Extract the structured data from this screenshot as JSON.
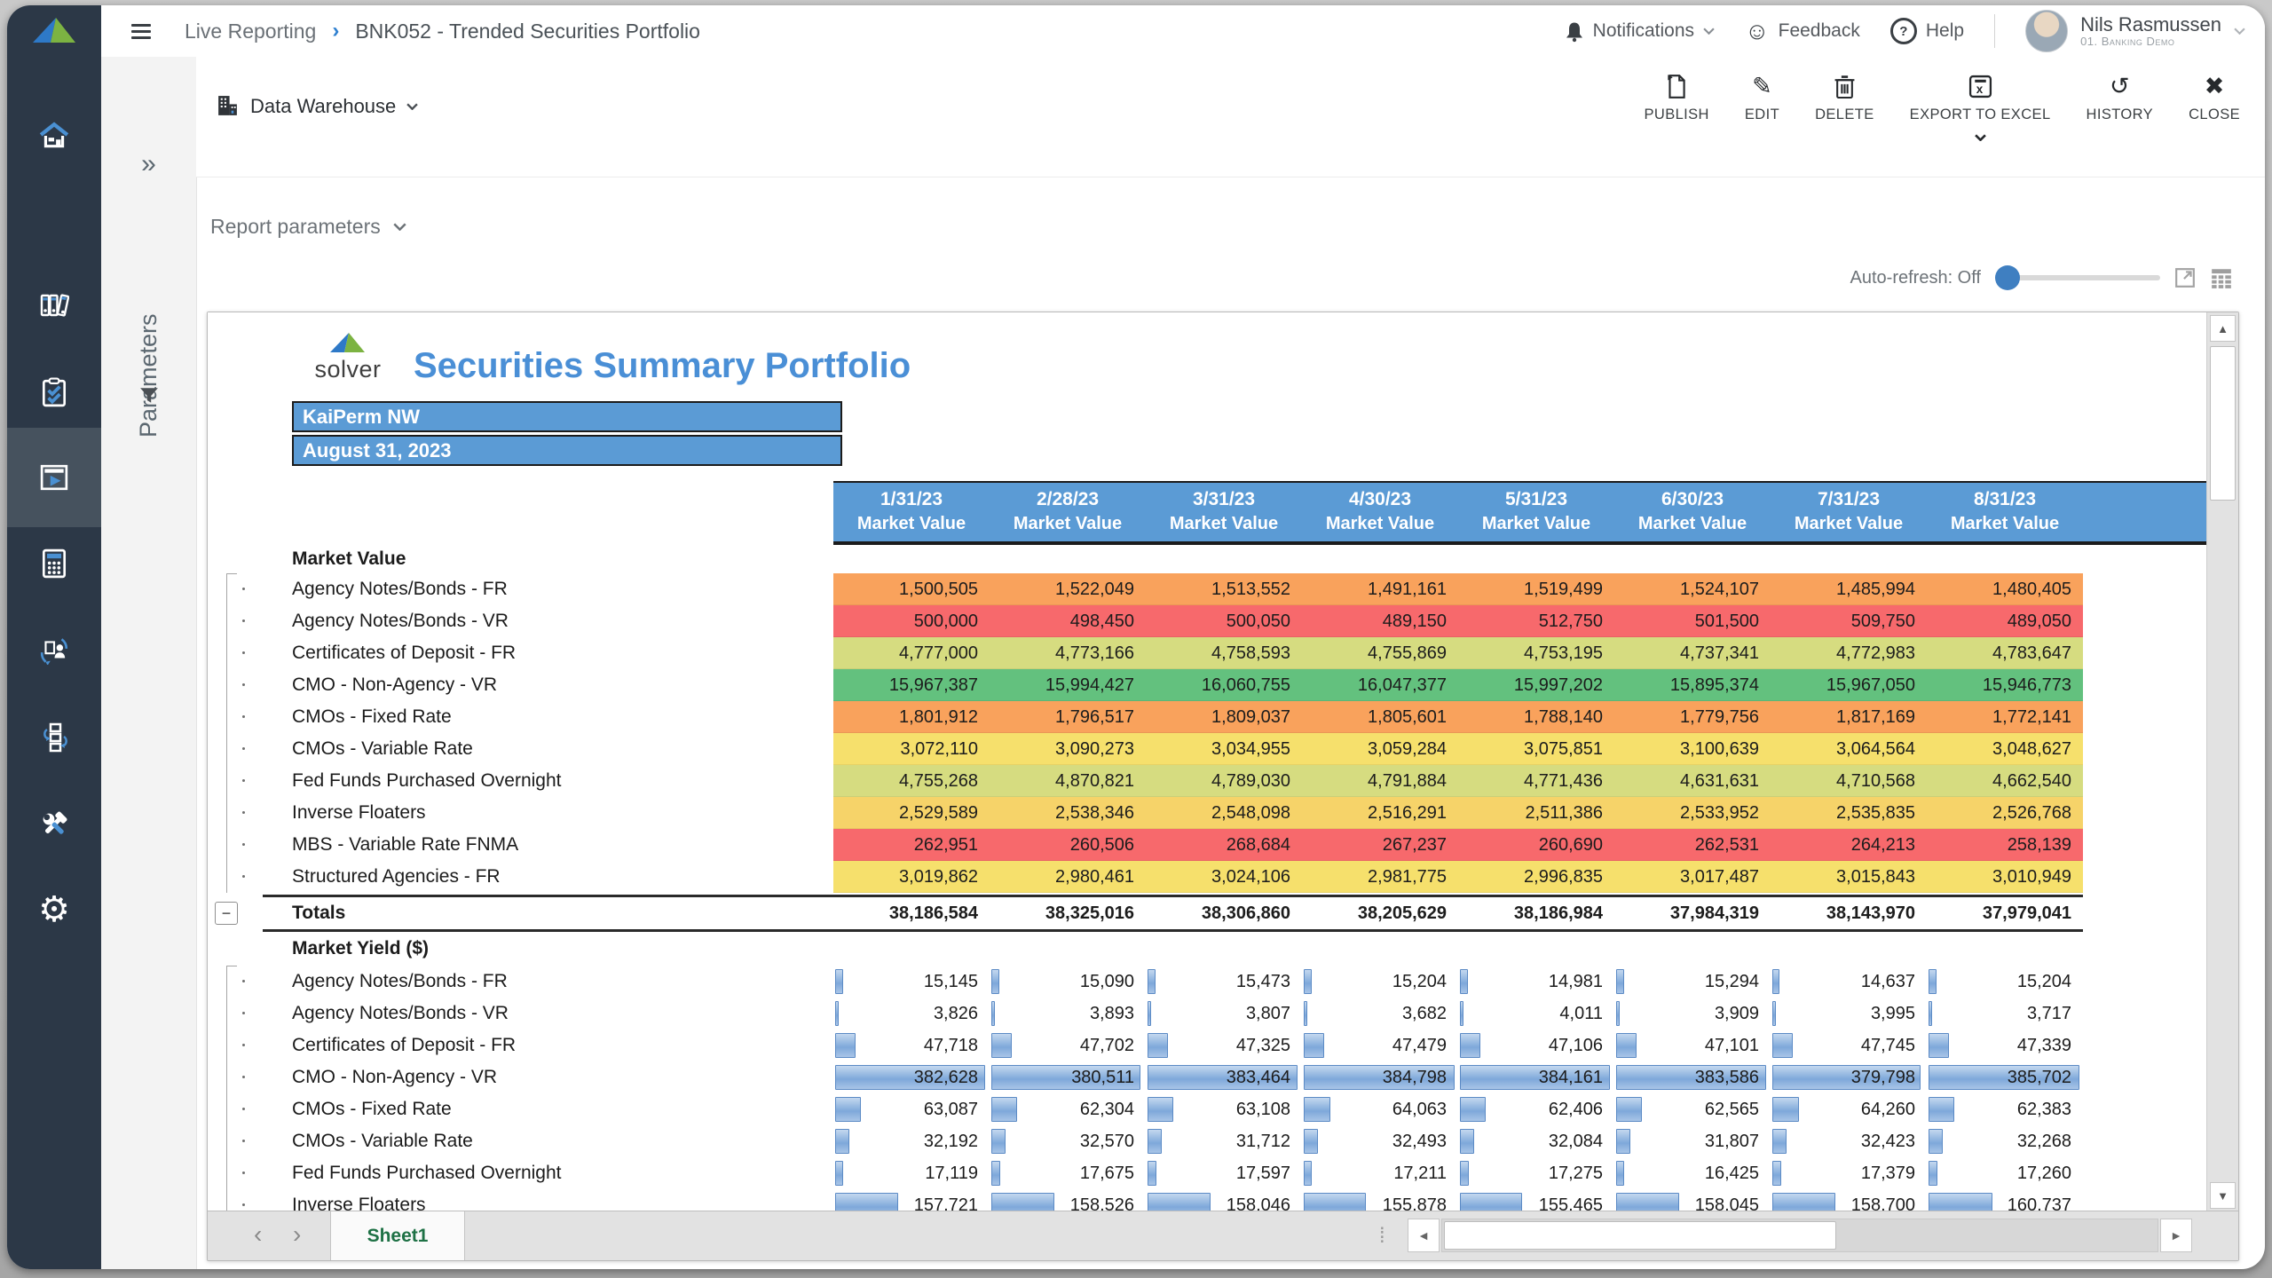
{
  "topbar": {
    "breadcrumb": {
      "section": "Live Reporting",
      "separator": "›",
      "title": "BNK052 - Trended Securities Portfolio"
    },
    "notifications_label": "Notifications",
    "feedback_label": "Feedback",
    "help_label": "Help",
    "user": {
      "name": "Nils Rasmussen",
      "org": "01. Banking Demo"
    }
  },
  "sidebar": {
    "items": [
      {
        "name": "home"
      },
      {
        "name": "library"
      },
      {
        "name": "tasks"
      },
      {
        "name": "reports",
        "selected": true
      },
      {
        "name": "budgeting"
      },
      {
        "name": "assignments"
      },
      {
        "name": "processes"
      },
      {
        "name": "administration"
      },
      {
        "name": "settings"
      }
    ]
  },
  "toolbar": {
    "source_label": "Data Warehouse",
    "actions": [
      {
        "id": "publish",
        "label": "PUBLISH"
      },
      {
        "id": "edit",
        "label": "EDIT"
      },
      {
        "id": "delete",
        "label": "DELETE"
      },
      {
        "id": "export",
        "label": "EXPORT TO EXCEL",
        "has_dropdown": true
      },
      {
        "id": "history",
        "label": "HISTORY"
      },
      {
        "id": "close",
        "label": "CLOSE"
      }
    ]
  },
  "params_panel": {
    "label": "Parameters"
  },
  "report_bar": {
    "parameters_label": "Report parameters"
  },
  "autorefresh": {
    "label": "Auto-refresh: Off"
  },
  "glyphs": {
    "expand": "»",
    "smiley": "☺",
    "question": "?",
    "gear": "⚙",
    "edit": "✎",
    "history": "↺",
    "close": "✖",
    "up": "▲",
    "down": "▼",
    "left": "◄",
    "right": "►",
    "nav_left": "‹",
    "nav_right": "›",
    "dots": "⁞",
    "minus": "−"
  },
  "sheet": {
    "logo_text": "solver",
    "title": "Securities Summary Portfolio",
    "entity": "KaiPerm NW",
    "report_date": "August 31, 2023",
    "columns": [
      "1/31/23",
      "2/28/23",
      "3/31/23",
      "4/30/23",
      "5/31/23",
      "6/30/23",
      "7/31/23",
      "8/31/23"
    ],
    "column_subheader": "Market Value",
    "colors": {
      "orange": "#F9A25C",
      "red": "#F7696C",
      "yellow": "#F6E06C",
      "yellow_green": "#D6DC80",
      "green": "#63C17E",
      "amber": "#F6D369",
      "header_blue": "#5B9BD5",
      "accent_blue": "#3F7FC1",
      "tab_green": "#1E7145"
    },
    "sections": [
      {
        "name": "Market Value",
        "type": "colored",
        "rows": [
          {
            "label": "Agency Notes/Bonds - FR",
            "color": "orange",
            "values": [
              "1,500,505",
              "1,522,049",
              "1,513,552",
              "1,491,161",
              "1,519,499",
              "1,524,107",
              "1,485,994",
              "1,480,405"
            ]
          },
          {
            "label": "Agency Notes/Bonds - VR",
            "color": "red",
            "values": [
              "500,000",
              "498,450",
              "500,050",
              "489,150",
              "512,750",
              "501,500",
              "509,750",
              "489,050"
            ]
          },
          {
            "label": "Certificates of Deposit - FR",
            "color": "yellow_green",
            "values": [
              "4,777,000",
              "4,773,166",
              "4,758,593",
              "4,755,869",
              "4,753,195",
              "4,737,341",
              "4,772,983",
              "4,783,647"
            ]
          },
          {
            "label": "CMO - Non-Agency - VR",
            "color": "green",
            "values": [
              "15,967,387",
              "15,994,427",
              "16,060,755",
              "16,047,377",
              "15,997,202",
              "15,895,374",
              "15,967,050",
              "15,946,773"
            ]
          },
          {
            "label": "CMOs - Fixed Rate",
            "color": "orange",
            "values": [
              "1,801,912",
              "1,796,517",
              "1,809,037",
              "1,805,601",
              "1,788,140",
              "1,779,756",
              "1,817,169",
              "1,772,141"
            ]
          },
          {
            "label": "CMOs - Variable Rate",
            "color": "yellow",
            "values": [
              "3,072,110",
              "3,090,273",
              "3,034,955",
              "3,059,284",
              "3,075,851",
              "3,100,639",
              "3,064,564",
              "3,048,627"
            ]
          },
          {
            "label": "Fed Funds Purchased Overnight",
            "color": "yellow_green",
            "values": [
              "4,755,268",
              "4,870,821",
              "4,789,030",
              "4,791,884",
              "4,771,436",
              "4,631,631",
              "4,710,568",
              "4,662,540"
            ]
          },
          {
            "label": "Inverse Floaters",
            "color": "amber",
            "values": [
              "2,529,589",
              "2,538,346",
              "2,548,098",
              "2,516,291",
              "2,511,386",
              "2,533,952",
              "2,535,835",
              "2,526,768"
            ]
          },
          {
            "label": "MBS - Variable Rate FNMA",
            "color": "red",
            "values": [
              "262,951",
              "260,506",
              "268,684",
              "267,237",
              "260,690",
              "262,531",
              "264,213",
              "258,139"
            ]
          },
          {
            "label": "Structured Agencies - FR",
            "color": "yellow",
            "values": [
              "3,019,862",
              "2,980,461",
              "3,024,106",
              "2,981,775",
              "2,996,835",
              "3,017,487",
              "3,015,843",
              "3,010,949"
            ]
          }
        ],
        "totals": {
          "label": "Totals",
          "values": [
            "38,186,584",
            "38,325,016",
            "38,306,860",
            "38,205,629",
            "38,186,984",
            "37,984,319",
            "38,143,970",
            "37,979,041"
          ]
        }
      },
      {
        "name": "Market Yield ($)",
        "type": "databar",
        "max": 385702,
        "rows": [
          {
            "label": "Agency Notes/Bonds - FR",
            "values": [
              "15,145",
              "15,090",
              "15,473",
              "15,204",
              "14,981",
              "15,294",
              "14,637",
              "15,204"
            ]
          },
          {
            "label": "Agency Notes/Bonds - VR",
            "values": [
              "3,826",
              "3,893",
              "3,807",
              "3,682",
              "4,011",
              "3,909",
              "3,995",
              "3,717"
            ]
          },
          {
            "label": "Certificates of Deposit - FR",
            "values": [
              "47,718",
              "47,702",
              "47,325",
              "47,479",
              "47,106",
              "47,101",
              "47,745",
              "47,339"
            ]
          },
          {
            "label": "CMO - Non-Agency - VR",
            "values": [
              "382,628",
              "380,511",
              "383,464",
              "384,798",
              "384,161",
              "383,586",
              "379,798",
              "385,702"
            ]
          },
          {
            "label": "CMOs - Fixed Rate",
            "values": [
              "63,087",
              "62,304",
              "63,108",
              "64,063",
              "62,406",
              "62,565",
              "64,260",
              "62,383"
            ]
          },
          {
            "label": "CMOs - Variable Rate",
            "values": [
              "32,192",
              "32,570",
              "31,712",
              "32,493",
              "32,084",
              "31,807",
              "32,423",
              "32,268"
            ]
          },
          {
            "label": "Fed Funds Purchased Overnight",
            "values": [
              "17,119",
              "17,675",
              "17,597",
              "17,211",
              "17,275",
              "16,425",
              "17,379",
              "17,260"
            ]
          },
          {
            "label": "Inverse Floaters",
            "clipped": true,
            "values": [
              "157,721",
              "158,526",
              "158,046",
              "155,878",
              "155,465",
              "158,045",
              "158,700",
              "160,737"
            ]
          }
        ]
      }
    ],
    "tab": "Sheet1"
  }
}
